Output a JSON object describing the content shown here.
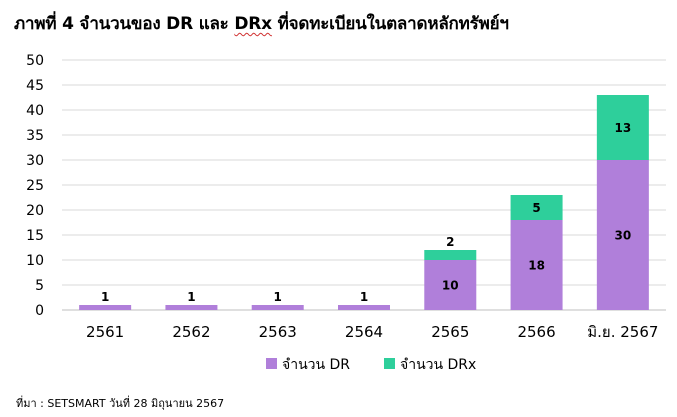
{
  "title_parts": [
    "ภาพที่ 4 จำนวนของ DR และ ",
    "DRx",
    " ที่จดทะเบียนในตลาดหลักทรัพย์ฯ"
  ],
  "source": "ที่มา : SETSMART วันที่ 28 มิถุนายน 2567",
  "colors": {
    "dr": "#b07fda",
    "drx": "#2ecf9b",
    "grid": "#d9d9d9",
    "axis": "#bfbfbf",
    "text": "#000000"
  },
  "chart_data": {
    "type": "bar",
    "stacked": true,
    "categories": [
      "2561",
      "2562",
      "2563",
      "2564",
      "2565",
      "2566",
      "มิ.ย. 2567"
    ],
    "series": [
      {
        "name": "จำนวน DR",
        "values": [
          1,
          1,
          1,
          1,
          10,
          18,
          30
        ]
      },
      {
        "name": "จำนวน DRx",
        "values": [
          0,
          0,
          0,
          0,
          2,
          5,
          13
        ]
      }
    ],
    "ylim": [
      0,
      50
    ],
    "yticks": [
      0,
      5,
      10,
      15,
      20,
      25,
      30,
      35,
      40,
      45,
      50
    ],
    "grid": true,
    "legend": "bottom-center"
  }
}
